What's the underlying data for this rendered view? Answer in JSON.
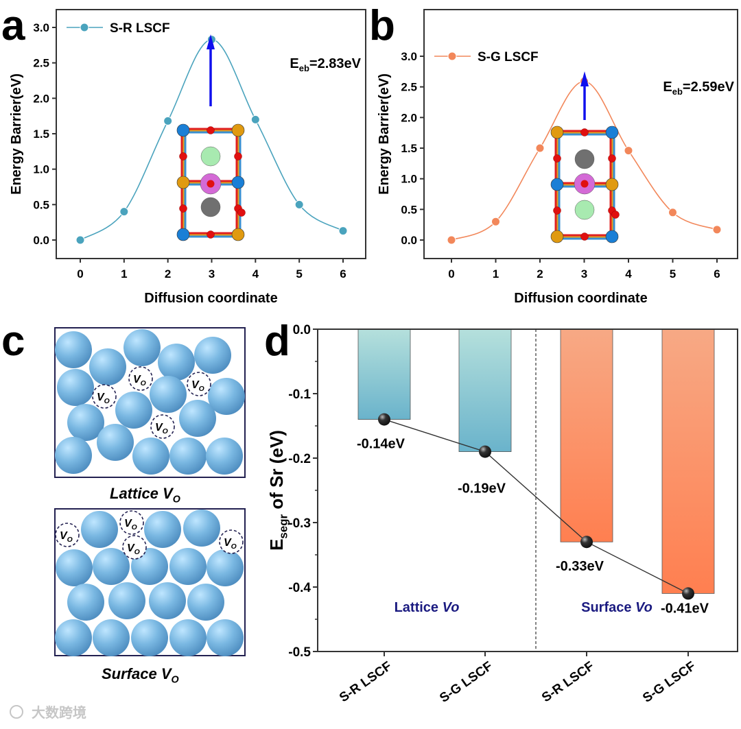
{
  "panel_labels": {
    "a": "a",
    "b": "b",
    "c": "c",
    "d": "d"
  },
  "chart_data": [
    {
      "id": "a",
      "type": "line",
      "series": [
        {
          "name": "S-R LSCF",
          "x": [
            0,
            1,
            2,
            3,
            4,
            5,
            6
          ],
          "values": [
            0.0,
            0.4,
            1.68,
            2.83,
            1.7,
            0.5,
            0.13
          ],
          "color": "#4aa3bd"
        }
      ],
      "xlabel": "Diffusion coordinate",
      "ylabel": "Energy Barrier(eV)",
      "xticks": [
        "0",
        "1",
        "2",
        "3",
        "4",
        "5",
        "6"
      ],
      "yticks": [
        "0.0",
        "0.5",
        "1.0",
        "1.5",
        "2.0",
        "2.5",
        "3.0"
      ],
      "xlim": [
        -0.2,
        6.2
      ],
      "ylim": [
        -0.25,
        3.25
      ],
      "legend": "top-left",
      "annotation": {
        "main": "E",
        "sub": "eb",
        "value": "=2.83eV"
      }
    },
    {
      "id": "b",
      "type": "line",
      "series": [
        {
          "name": "S-G LSCF",
          "x": [
            0,
            1,
            2,
            3,
            4,
            5,
            6
          ],
          "values": [
            0.0,
            0.3,
            1.5,
            2.59,
            1.46,
            0.45,
            0.17
          ],
          "color": "#f2875a"
        }
      ],
      "xlabel": "Diffusion coordinate",
      "ylabel": "Energy Barrier(eV)",
      "xticks": [
        "0",
        "1",
        "2",
        "3",
        "4",
        "5",
        "6"
      ],
      "yticks": [
        "0.0",
        "0.5",
        "1.0",
        "1.5",
        "2.0",
        "2.5",
        "3.0"
      ],
      "xlim": [
        -0.2,
        6.2
      ],
      "ylim": [
        -0.25,
        3.25
      ],
      "legend": "top-left",
      "annotation": {
        "main": "E",
        "sub": "eb",
        "value": "=2.59eV"
      }
    },
    {
      "id": "d",
      "type": "bar",
      "categories": [
        "S-R LSCF",
        "S-G LSCF",
        "S-R LSCF",
        "S-G LSCF"
      ],
      "values": [
        -0.14,
        -0.19,
        -0.33,
        -0.41
      ],
      "data_labels": [
        "-0.14eV",
        "-0.19eV",
        "-0.33eV",
        "-0.41eV"
      ],
      "groups": [
        {
          "label": "Lattice ",
          "italic": "Vo"
        },
        {
          "label": "Surface ",
          "italic": "Vo"
        }
      ],
      "colors": {
        "lattice_top": "#b5e0dc",
        "lattice_bottom": "#6ab3cb",
        "surface_top": "#f7a985",
        "surface_bottom": "#ff7f50"
      },
      "ylabel_main": "E",
      "ylabel_sub": "segr",
      "ylabel_rest": " of Sr (eV)",
      "yticks": [
        "0.0",
        "-0.1",
        "-0.2",
        "-0.3",
        "-0.4",
        "-0.5"
      ],
      "ylim": [
        -0.5,
        0.0
      ]
    }
  ],
  "panel_c": {
    "lattice_caption": {
      "main": "Lattice V",
      "sub": "O"
    },
    "surface_caption": {
      "main": "Surface V",
      "sub": "O"
    },
    "vacancy_label": {
      "main": "V",
      "sub": "O"
    }
  },
  "watermark": "大数跨境"
}
